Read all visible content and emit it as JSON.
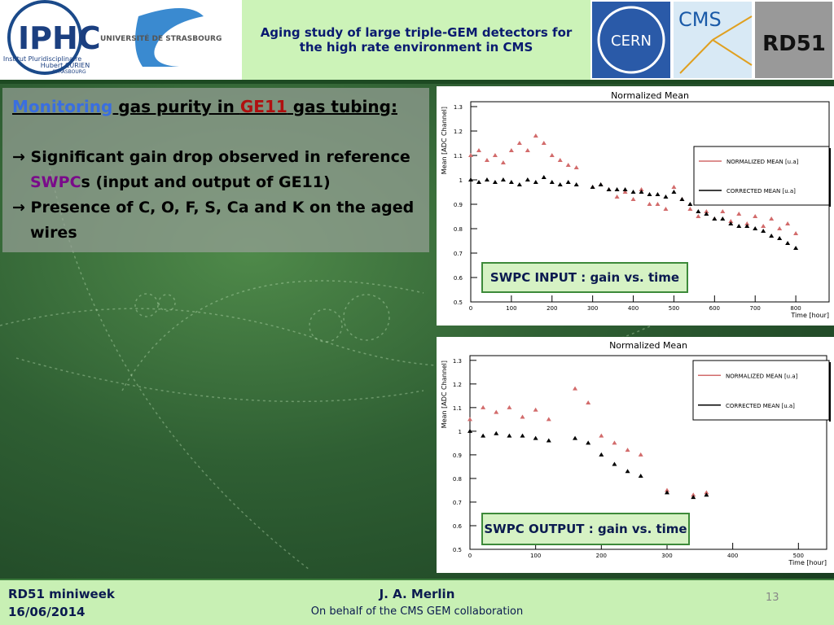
{
  "header": {
    "title": "Aging study of large triple-GEM detectors for the high rate environment in CMS",
    "logos": {
      "iphc": "IPHC",
      "university": "UNIVERSITÉ DE STRASBOURG",
      "institute": [
        "Institut Pluridisciplinaire",
        "Hubert CURIEN",
        "STRASBOURG"
      ],
      "cern": "CERN",
      "cms": "CMS",
      "rd51": "RD51"
    }
  },
  "content": {
    "heading": {
      "link": "Monitoring ",
      "text1": "gas purity in ",
      "highlight": "GE11",
      "text2": " gas tubing:"
    },
    "bullets": [
      {
        "text1": "Significant gain drop observed in reference ",
        "highlight": "SWPC",
        "text2": "s (input and output of GE11)"
      },
      {
        "text1": "Presence of C, O, F, S, Ca and K on the aged wires"
      }
    ]
  },
  "chart_data": [
    {
      "type": "scatter",
      "title": "Normalized Mean",
      "xlabel": "Time [hour]",
      "ylabel": "Mean [ADC Channel]",
      "annotation": "SWPC INPUT : gain vs. time",
      "x": [
        0,
        20,
        40,
        60,
        80,
        100,
        120,
        140,
        160,
        180,
        200,
        220,
        240,
        260,
        280,
        300,
        320,
        340,
        360,
        380,
        400,
        420,
        440,
        460,
        480,
        500,
        520,
        540,
        560,
        580,
        600,
        620,
        640,
        660,
        680,
        700,
        720,
        740,
        760,
        780,
        800
      ],
      "series": [
        {
          "name": "NORMALIZED MEAN [u.a]",
          "color": "#d26b6b",
          "values": [
            1.1,
            1.12,
            1.08,
            1.1,
            1.07,
            1.12,
            1.15,
            1.12,
            1.18,
            1.15,
            1.1,
            1.08,
            1.06,
            1.05,
            null,
            0.97,
            0.98,
            0.96,
            0.93,
            0.95,
            0.92,
            0.96,
            0.9,
            0.9,
            0.88,
            0.97,
            0.92,
            0.88,
            0.85,
            0.87,
            0.84,
            0.87,
            0.83,
            0.86,
            0.82,
            0.85,
            0.81,
            0.84,
            0.8,
            0.82,
            0.78
          ]
        },
        {
          "name": "CORRECTED MEAN [u.a]",
          "color": "#000000",
          "values": [
            1.0,
            0.99,
            1.0,
            0.99,
            1.0,
            0.99,
            0.98,
            1.0,
            0.99,
            1.01,
            0.99,
            0.98,
            0.99,
            0.98,
            null,
            0.97,
            0.98,
            0.96,
            0.96,
            0.96,
            0.95,
            0.95,
            0.94,
            0.94,
            0.93,
            0.95,
            0.92,
            0.9,
            0.87,
            0.86,
            0.84,
            0.84,
            0.82,
            0.81,
            0.81,
            0.8,
            0.79,
            0.77,
            0.76,
            0.74,
            0.72
          ]
        }
      ],
      "xlim": [
        0,
        882
      ],
      "xticks": [
        0,
        100,
        200,
        300,
        400,
        500,
        600,
        700,
        800
      ],
      "ylim": [
        0.5,
        1.32
      ],
      "yticks": [
        0.5,
        0.6,
        0.7,
        0.8,
        0.9,
        1,
        1.1,
        1.2,
        1.3
      ],
      "legend": "upper right"
    },
    {
      "type": "scatter",
      "title": "Normalized Mean",
      "xlabel": "Time [hour]",
      "ylabel": "Mean [ADC Channel]",
      "annotation": "SWPC OUTPUT : gain vs. time",
      "x": [
        0,
        20,
        40,
        60,
        80,
        100,
        120,
        140,
        160,
        180,
        200,
        220,
        240,
        260,
        280,
        300,
        320,
        340,
        360
      ],
      "series": [
        {
          "name": "NORMALIZED MEAN [u.a]",
          "color": "#d26b6b",
          "values": [
            1.05,
            1.1,
            1.08,
            1.1,
            1.06,
            1.09,
            1.05,
            null,
            1.18,
            1.12,
            0.98,
            0.95,
            0.92,
            0.9,
            null,
            0.75,
            null,
            0.73,
            0.74
          ]
        },
        {
          "name": "CORRECTED MEAN [u.a]",
          "color": "#000000",
          "values": [
            1.0,
            0.98,
            0.99,
            0.98,
            0.98,
            0.97,
            0.96,
            null,
            0.97,
            0.95,
            0.9,
            0.86,
            0.83,
            0.81,
            null,
            0.74,
            null,
            0.72,
            0.73
          ]
        }
      ],
      "xlim": [
        0,
        543
      ],
      "xticks": [
        0,
        100,
        200,
        300,
        400,
        500
      ],
      "ylim": [
        0.5,
        1.32
      ],
      "yticks": [
        0.5,
        0.6,
        0.7,
        0.8,
        0.9,
        1,
        1.1,
        1.2,
        1.3
      ],
      "legend": "upper right"
    }
  ],
  "footer": {
    "event": "RD51 miniweek",
    "date": "16/06/2014",
    "author": "J. A. Merlin",
    "affiliation": "On behalf of the CMS GEM collaboration",
    "page": "13"
  }
}
